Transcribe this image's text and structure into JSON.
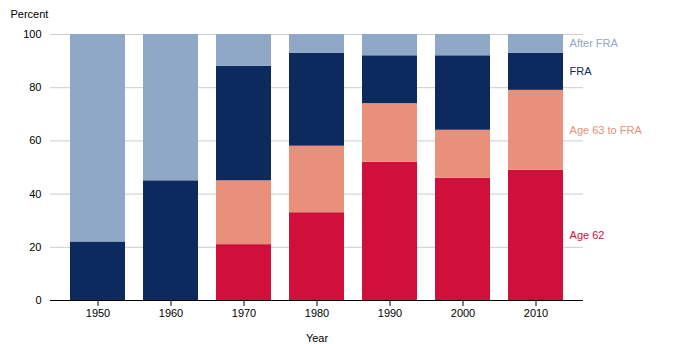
{
  "chart_data": {
    "type": "bar",
    "stacked": true,
    "xlabel": "Year",
    "ylabel": "Percent",
    "categories": [
      "1950",
      "1960",
      "1970",
      "1980",
      "1990",
      "2000",
      "2010"
    ],
    "series": [
      {
        "name": "Age 62",
        "color": "#D0103A",
        "values": [
          0,
          0,
          21,
          33,
          52,
          46,
          49
        ]
      },
      {
        "name": "Age 63 to FRA",
        "color": "#E8907A",
        "values": [
          0,
          0,
          24,
          25,
          22,
          18,
          30
        ]
      },
      {
        "name": "FRA",
        "color": "#0D2A5E",
        "values": [
          22,
          45,
          43,
          35,
          18,
          28,
          14
        ]
      },
      {
        "name": "After FRA",
        "color": "#8FA8C8",
        "values": [
          78,
          55,
          12,
          7,
          8,
          8,
          7
        ]
      }
    ],
    "ylim": [
      0,
      100
    ],
    "yticks": [
      0,
      20,
      40,
      60,
      80,
      100
    ],
    "grid": true
  }
}
